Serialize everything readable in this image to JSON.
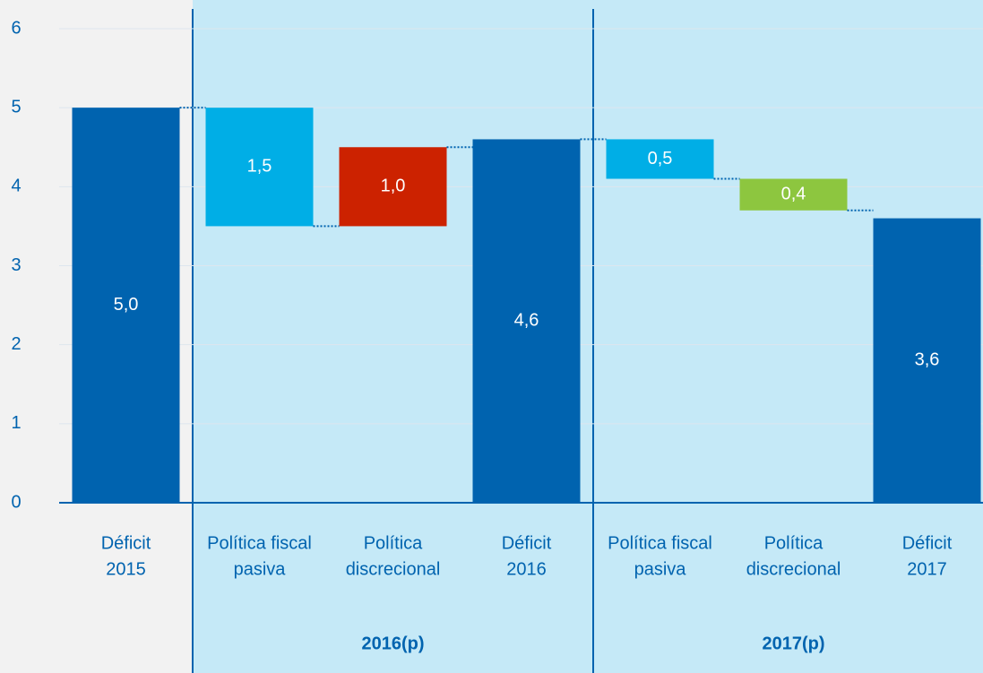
{
  "chart_data": {
    "type": "waterfall",
    "categories": [
      [
        "Déficit",
        "2015"
      ],
      [
        "Política fiscal",
        "pasiva"
      ],
      [
        "Política",
        "discrecional"
      ],
      [
        "Déficit",
        "2016"
      ],
      [
        "Política fiscal",
        "pasiva"
      ],
      [
        "Política",
        "discrecional"
      ],
      [
        "Déficit",
        "2017"
      ]
    ],
    "values": [
      5.0,
      1.5,
      1.0,
      4.6,
      0.5,
      0.4,
      3.6
    ],
    "value_labels": [
      "5,0",
      "1,5",
      "1,0",
      "4,6",
      "0,5",
      "0,4",
      "3,6"
    ],
    "kinds": [
      "total",
      "decrease",
      "increase",
      "total",
      "decrease",
      "decrease",
      "total"
    ],
    "colors": [
      "#0063af",
      "#00aee6",
      "#cc2200",
      "#0063af",
      "#00aee6",
      "#8dc63f",
      "#0063af"
    ],
    "groups": [
      {
        "label": "2016(p)",
        "start": 1,
        "end": 3
      },
      {
        "label": "2017(p)",
        "start": 4,
        "end": 6
      }
    ],
    "ylim": [
      0,
      6
    ],
    "yticks": [
      0,
      1,
      2,
      3,
      4,
      5,
      6
    ],
    "grid": true
  }
}
